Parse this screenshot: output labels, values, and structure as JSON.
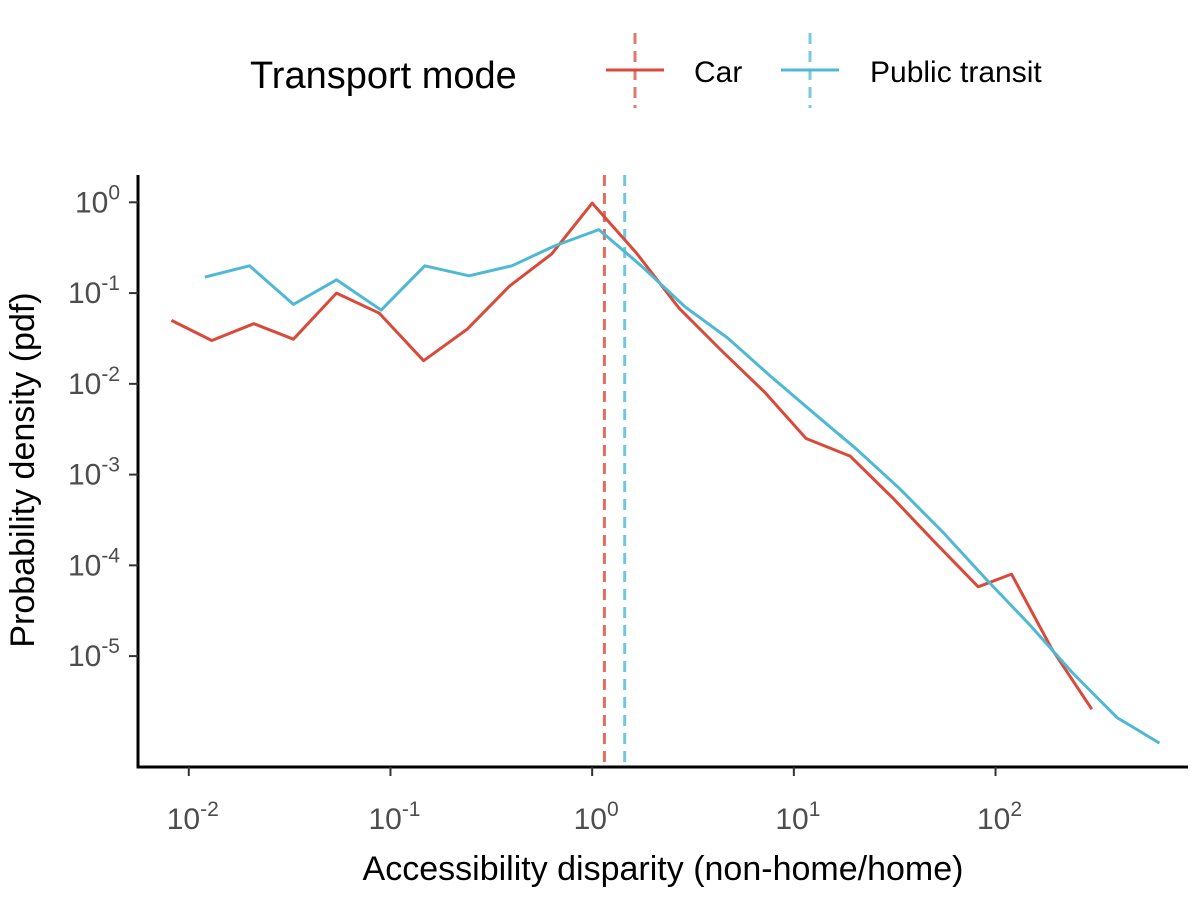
{
  "chart_data": {
    "type": "line",
    "x_scale": "log",
    "y_scale": "log",
    "xlabel": "Accessibility disparity (non-home/home)",
    "ylabel": "Probability density (pdf)",
    "xlim": [
      0.0056,
      900
    ],
    "ylim": [
      6e-07,
      2
    ],
    "x_ticks": [
      {
        "value": 0.01,
        "base": "10",
        "exp": "-2"
      },
      {
        "value": 0.1,
        "base": "10",
        "exp": "-1"
      },
      {
        "value": 1,
        "base": "10",
        "exp": "0"
      },
      {
        "value": 10,
        "base": "10",
        "exp": "1"
      },
      {
        "value": 100,
        "base": "10",
        "exp": "2"
      }
    ],
    "y_ticks": [
      {
        "value": 1,
        "base": "10",
        "exp": "0"
      },
      {
        "value": 0.1,
        "base": "10",
        "exp": "-1"
      },
      {
        "value": 0.01,
        "base": "10",
        "exp": "-2"
      },
      {
        "value": 0.001,
        "base": "10",
        "exp": "-3"
      },
      {
        "value": 0.0001,
        "base": "10",
        "exp": "-4"
      },
      {
        "value": 1e-05,
        "base": "10",
        "exp": "-5"
      }
    ],
    "grid": false,
    "legend": {
      "title": "Transport mode",
      "position": "top"
    },
    "series": [
      {
        "name": "Car",
        "color": "#d94a3a",
        "x": [
          0.0082,
          0.013,
          0.021,
          0.033,
          0.054,
          0.088,
          0.146,
          0.24,
          0.39,
          0.63,
          1.0,
          1.65,
          2.7,
          4.4,
          7.2,
          11.5,
          19,
          31,
          50,
          82,
          120,
          190,
          300
        ],
        "y": [
          0.05,
          0.03,
          0.046,
          0.031,
          0.1,
          0.06,
          0.018,
          0.04,
          0.12,
          0.27,
          0.98,
          0.28,
          0.068,
          0.023,
          0.008,
          0.0025,
          0.0016,
          0.00055,
          0.00018,
          5.8e-05,
          8e-05,
          1.2e-05,
          2.6e-06
        ]
      },
      {
        "name": "Public transit",
        "color": "#4fb8d4",
        "x": [
          0.012,
          0.02,
          0.033,
          0.054,
          0.09,
          0.148,
          0.245,
          0.4,
          0.65,
          1.08,
          1.75,
          2.9,
          4.7,
          7.7,
          12.5,
          20.5,
          33.5,
          55,
          90,
          148,
          240,
          400,
          650
        ],
        "y": [
          0.15,
          0.2,
          0.075,
          0.14,
          0.065,
          0.2,
          0.155,
          0.2,
          0.33,
          0.5,
          0.2,
          0.07,
          0.032,
          0.012,
          0.0048,
          0.0019,
          0.0007,
          0.00023,
          7e-05,
          2.2e-05,
          6.6e-06,
          2.1e-06,
          1.1e-06
        ]
      }
    ],
    "reference_lines": [
      {
        "series": "Car",
        "x": 1.15,
        "style": "dashed"
      },
      {
        "series": "Public transit",
        "x": 1.45,
        "style": "dashed"
      }
    ]
  }
}
